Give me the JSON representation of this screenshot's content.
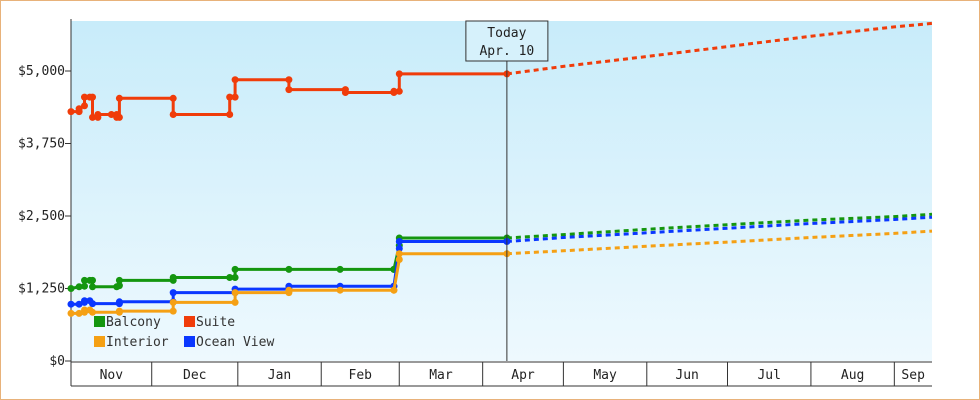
{
  "colors": {
    "Balcony": "#14960f",
    "Suite": "#f03c0a",
    "Interior": "#f5a014",
    "Ocean View": "#0a37ff",
    "plot_bg_top": "#c8ecfa",
    "plot_bg_bottom": "#eef9fe"
  },
  "chart_data": {
    "type": "line",
    "title": "",
    "xlabel": "",
    "ylabel": "",
    "ylim": [
      0,
      5150
    ],
    "y_ticks": [
      {
        "value": 0,
        "label": "$0"
      },
      {
        "value": 1250,
        "label": "$1,250"
      },
      {
        "value": 2500,
        "label": "$2,500"
      },
      {
        "value": 3750,
        "label": "$3,750"
      },
      {
        "value": 5000,
        "label": "$5,000"
      }
    ],
    "x_axis": {
      "start": "2023-10-31",
      "end": "2024-09-15",
      "months": [
        {
          "label": "Nov",
          "start": "2023-10-31",
          "end": "2023-11-30"
        },
        {
          "label": "Dec",
          "start": "2023-11-30",
          "end": "2024-01-01"
        },
        {
          "label": "Jan",
          "start": "2024-01-01",
          "end": "2024-02-01"
        },
        {
          "label": "Feb",
          "start": "2024-02-01",
          "end": "2024-03-01"
        },
        {
          "label": "Mar",
          "start": "2024-03-01",
          "end": "2024-04-01"
        },
        {
          "label": "Apr",
          "start": "2024-04-01",
          "end": "2024-05-01"
        },
        {
          "label": "May",
          "start": "2024-05-01",
          "end": "2024-06-01"
        },
        {
          "label": "Jun",
          "start": "2024-06-01",
          "end": "2024-07-01"
        },
        {
          "label": "Jul",
          "start": "2024-07-01",
          "end": "2024-08-01"
        },
        {
          "label": "Aug",
          "start": "2024-08-01",
          "end": "2024-09-01"
        },
        {
          "label": "Sep",
          "start": "2024-09-01",
          "end": "2024-09-15"
        }
      ]
    },
    "today": {
      "date": "2024-04-10",
      "line1": "Today",
      "line2": "Apr. 10"
    },
    "legend": {
      "placement": "bottom-left"
    },
    "series": [
      {
        "name": "Suite",
        "historical": [
          [
            "2023-10-31",
            4300
          ],
          [
            "2023-11-03",
            4300
          ],
          [
            "2023-11-03",
            4350
          ],
          [
            "2023-11-05",
            4400
          ],
          [
            "2023-11-05",
            4550
          ],
          [
            "2023-11-07",
            4550
          ],
          [
            "2023-11-08",
            4550
          ],
          [
            "2023-11-08",
            4200
          ],
          [
            "2023-11-10",
            4200
          ],
          [
            "2023-11-10",
            4250
          ],
          [
            "2023-11-15",
            4250
          ],
          [
            "2023-11-17",
            4250
          ],
          [
            "2023-11-17",
            4200
          ],
          [
            "2023-11-18",
            4200
          ],
          [
            "2023-11-18",
            4530
          ],
          [
            "2023-12-08",
            4530
          ],
          [
            "2023-12-08",
            4250
          ],
          [
            "2023-12-29",
            4250
          ],
          [
            "2023-12-29",
            4550
          ],
          [
            "2023-12-31",
            4550
          ],
          [
            "2023-12-31",
            4850
          ],
          [
            "2024-01-20",
            4850
          ],
          [
            "2024-01-20",
            4680
          ],
          [
            "2024-02-10",
            4680
          ],
          [
            "2024-02-10",
            4630
          ],
          [
            "2024-02-28",
            4630
          ],
          [
            "2024-02-28",
            4650
          ],
          [
            "2024-03-01",
            4650
          ],
          [
            "2024-03-01",
            4950
          ],
          [
            "2024-04-10",
            4950
          ]
        ],
        "forecast": [
          [
            "2024-04-10",
            4950
          ],
          [
            "2024-05-01",
            5080
          ],
          [
            "2024-06-01",
            5250
          ],
          [
            "2024-07-01",
            5420
          ],
          [
            "2024-08-01",
            5600
          ],
          [
            "2024-09-01",
            5760
          ],
          [
            "2024-09-15",
            5820
          ]
        ]
      },
      {
        "name": "Balcony",
        "historical": [
          [
            "2023-10-31",
            1250
          ],
          [
            "2023-11-03",
            1280
          ],
          [
            "2023-11-05",
            1290
          ],
          [
            "2023-11-05",
            1390
          ],
          [
            "2023-11-07",
            1390
          ],
          [
            "2023-11-08",
            1390
          ],
          [
            "2023-11-08",
            1280
          ],
          [
            "2023-11-17",
            1280
          ],
          [
            "2023-11-18",
            1300
          ],
          [
            "2023-11-18",
            1390
          ],
          [
            "2023-12-08",
            1390
          ],
          [
            "2023-12-08",
            1440
          ],
          [
            "2023-12-29",
            1440
          ],
          [
            "2023-12-31",
            1440
          ],
          [
            "2023-12-31",
            1580
          ],
          [
            "2024-01-20",
            1580
          ],
          [
            "2024-02-08",
            1580
          ],
          [
            "2024-02-28",
            1580
          ],
          [
            "2024-02-28",
            1580
          ],
          [
            "2024-03-01",
            1990
          ],
          [
            "2024-03-01",
            2120
          ],
          [
            "2024-04-10",
            2120
          ]
        ],
        "forecast": [
          [
            "2024-04-10",
            2120
          ],
          [
            "2024-05-01",
            2180
          ],
          [
            "2024-06-01",
            2270
          ],
          [
            "2024-07-01",
            2350
          ],
          [
            "2024-08-01",
            2430
          ],
          [
            "2024-09-01",
            2490
          ],
          [
            "2024-09-15",
            2530
          ]
        ]
      },
      {
        "name": "Ocean View",
        "historical": [
          [
            "2023-10-31",
            980
          ],
          [
            "2023-11-03",
            980
          ],
          [
            "2023-11-05",
            1010
          ],
          [
            "2023-11-05",
            1040
          ],
          [
            "2023-11-07",
            1040
          ],
          [
            "2023-11-08",
            990
          ],
          [
            "2023-11-18",
            990
          ],
          [
            "2023-11-18",
            1020
          ],
          [
            "2023-12-08",
            1020
          ],
          [
            "2023-12-08",
            1180
          ],
          [
            "2023-12-31",
            1180
          ],
          [
            "2023-12-31",
            1240
          ],
          [
            "2024-01-20",
            1240
          ],
          [
            "2024-01-20",
            1290
          ],
          [
            "2024-02-08",
            1290
          ],
          [
            "2024-02-28",
            1290
          ],
          [
            "2024-02-28",
            1290
          ],
          [
            "2024-03-01",
            1940
          ],
          [
            "2024-03-01",
            2060
          ],
          [
            "2024-04-10",
            2060
          ]
        ],
        "forecast": [
          [
            "2024-04-10",
            2060
          ],
          [
            "2024-05-01",
            2130
          ],
          [
            "2024-06-01",
            2210
          ],
          [
            "2024-07-01",
            2290
          ],
          [
            "2024-08-01",
            2370
          ],
          [
            "2024-09-01",
            2440
          ],
          [
            "2024-09-15",
            2480
          ]
        ]
      },
      {
        "name": "Interior",
        "historical": [
          [
            "2023-10-31",
            820
          ],
          [
            "2023-11-03",
            820
          ],
          [
            "2023-11-05",
            840
          ],
          [
            "2023-11-05",
            880
          ],
          [
            "2023-11-07",
            880
          ],
          [
            "2023-11-08",
            840
          ],
          [
            "2023-11-18",
            840
          ],
          [
            "2023-11-18",
            860
          ],
          [
            "2023-12-08",
            860
          ],
          [
            "2023-12-08",
            1010
          ],
          [
            "2023-12-31",
            1010
          ],
          [
            "2023-12-31",
            1180
          ],
          [
            "2024-01-20",
            1180
          ],
          [
            "2024-01-20",
            1220
          ],
          [
            "2024-02-08",
            1220
          ],
          [
            "2024-02-28",
            1220
          ],
          [
            "2024-02-28",
            1220
          ],
          [
            "2024-03-01",
            1750
          ],
          [
            "2024-03-01",
            1850
          ],
          [
            "2024-04-10",
            1850
          ]
        ],
        "forecast": [
          [
            "2024-04-10",
            1850
          ],
          [
            "2024-05-01",
            1900
          ],
          [
            "2024-06-01",
            1980
          ],
          [
            "2024-07-01",
            2050
          ],
          [
            "2024-08-01",
            2130
          ],
          [
            "2024-09-01",
            2200
          ],
          [
            "2024-09-15",
            2240
          ]
        ]
      }
    ]
  },
  "legend_items": [
    {
      "name": "Balcony"
    },
    {
      "name": "Suite"
    },
    {
      "name": "Interior"
    },
    {
      "name": "Ocean View"
    }
  ]
}
